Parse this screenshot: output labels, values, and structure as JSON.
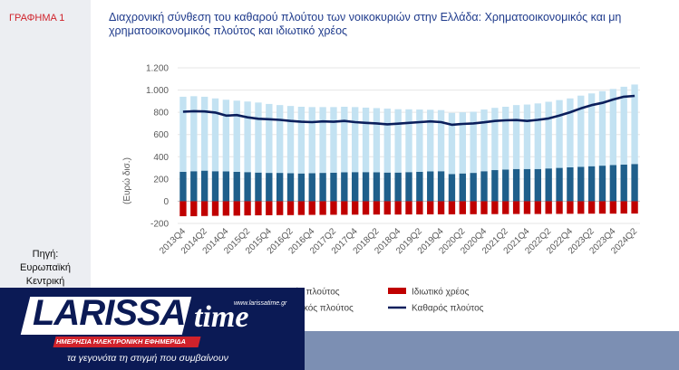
{
  "chart_label": "ΓΡΑΦΗΜΑ 1",
  "source_label": "Πηγή: Ευρωπαϊκή Κεντρική",
  "title": "Διαχρονική σύνθεση του καθαρού πλούτου των νοικοκυριών στην Ελλάδα: Χρηματοοικονομικός και μη χρηματοοικονομικός πλούτος και ιδιωτικό χρέος",
  "banner": {
    "logo_text": "LARISSA",
    "logo_time": "time",
    "url": "www.larissatime.gr",
    "strip_text": "ΗΜΕΡΗΣΙΑ ΗΛΕΚΤΡΟΝΙΚΗ ΕΦΗΜΕΡΙΔΑ",
    "tagline": "τα γεγονότα τη στιγμή που συμβαίνουν"
  },
  "colors": {
    "financial": "#c3e2f2",
    "non_financial": "#1f5f8b",
    "debt": "#c00000",
    "net": "#0b1f5c",
    "accent": "#d0222b",
    "title": "#1f3b8c"
  },
  "chart_data": {
    "type": "bar",
    "ylabel": "(Ευρώ δισ.)",
    "ylim": [
      -200,
      1200
    ],
    "yticks": [
      -200,
      0,
      200,
      400,
      600,
      800,
      1000,
      1200
    ],
    "ytick_labels": [
      "-200",
      "0",
      "200",
      "400",
      "600",
      "800",
      "1.000",
      "1.200"
    ],
    "categories": [
      "2013Q4",
      "2014Q1",
      "2014Q2",
      "2014Q3",
      "2014Q4",
      "2015Q1",
      "2015Q2",
      "2015Q3",
      "2015Q4",
      "2016Q1",
      "2016Q2",
      "2016Q3",
      "2016Q4",
      "2017Q1",
      "2017Q2",
      "2017Q3",
      "2017Q4",
      "2018Q1",
      "2018Q2",
      "2018Q3",
      "2018Q4",
      "2019Q1",
      "2019Q2",
      "2019Q3",
      "2019Q4",
      "2020Q1",
      "2020Q2",
      "2020Q3",
      "2020Q4",
      "2021Q1",
      "2021Q2",
      "2021Q3",
      "2021Q4",
      "2022Q1",
      "2022Q2",
      "2022Q3",
      "2022Q4",
      "2023Q1",
      "2023Q2",
      "2023Q3",
      "2023Q4",
      "2024Q1",
      "2024Q2"
    ],
    "tick_labels": [
      "2013Q4",
      "2014Q2",
      "2014Q4",
      "2015Q2",
      "2015Q4",
      "2016Q2",
      "2016Q4",
      "2017Q2",
      "2017Q4",
      "2018Q2",
      "2018Q4",
      "2019Q2",
      "2019Q4",
      "2020Q2",
      "2020Q4",
      "2021Q2",
      "2021Q4",
      "2022Q2",
      "2022Q4",
      "2023Q2",
      "2023Q4",
      "2024Q2"
    ],
    "series": [
      {
        "name": "Χρηματοοικονομικός πλούτος",
        "kind": "stack",
        "values": [
          675,
          675,
          665,
          655,
          645,
          640,
          635,
          630,
          620,
          610,
          605,
          600,
          595,
          592,
          590,
          590,
          585,
          580,
          578,
          575,
          570,
          565,
          560,
          555,
          550,
          550,
          550,
          550,
          555,
          560,
          565,
          575,
          580,
          590,
          600,
          610,
          620,
          640,
          655,
          670,
          685,
          700,
          715
        ]
      },
      {
        "name": "Μη χρηματοοικονομικός πλούτος",
        "kind": "stack",
        "values": [
          265,
          270,
          275,
          270,
          268,
          265,
          262,
          258,
          255,
          255,
          252,
          250,
          252,
          255,
          257,
          260,
          262,
          262,
          260,
          258,
          258,
          262,
          265,
          268,
          270,
          245,
          250,
          255,
          270,
          280,
          285,
          290,
          290,
          290,
          295,
          300,
          305,
          310,
          315,
          320,
          325,
          330,
          335
        ]
      },
      {
        "name": "Ιδιωτικό χρέος",
        "kind": "negative",
        "values": [
          -135,
          -135,
          -133,
          -132,
          -130,
          -130,
          -128,
          -127,
          -126,
          -125,
          -125,
          -124,
          -123,
          -123,
          -122,
          -122,
          -121,
          -121,
          -120,
          -120,
          -120,
          -119,
          -119,
          -118,
          -118,
          -118,
          -117,
          -117,
          -117,
          -116,
          -116,
          -115,
          -115,
          -115,
          -114,
          -114,
          -113,
          -113,
          -112,
          -112,
          -112,
          -111,
          -111
        ]
      },
      {
        "name": "Καθαρός πλούτος",
        "kind": "line",
        "values": [
          805,
          810,
          808,
          798,
          770,
          775,
          755,
          742,
          738,
          732,
          722,
          715,
          712,
          718,
          715,
          722,
          712,
          705,
          700,
          692,
          698,
          705,
          712,
          718,
          712,
          688,
          695,
          700,
          710,
          722,
          728,
          730,
          722,
          732,
          745,
          770,
          800,
          835,
          865,
          885,
          915,
          940,
          948
        ]
      }
    ],
    "legend": [
      "Χρηματοοικονομικός πλούτος",
      "Ιδιωτικό χρέος",
      "Μη χρηματοοικονομικός πλούτος",
      "Καθαρός πλούτος"
    ],
    "legend_position": "bottom"
  }
}
